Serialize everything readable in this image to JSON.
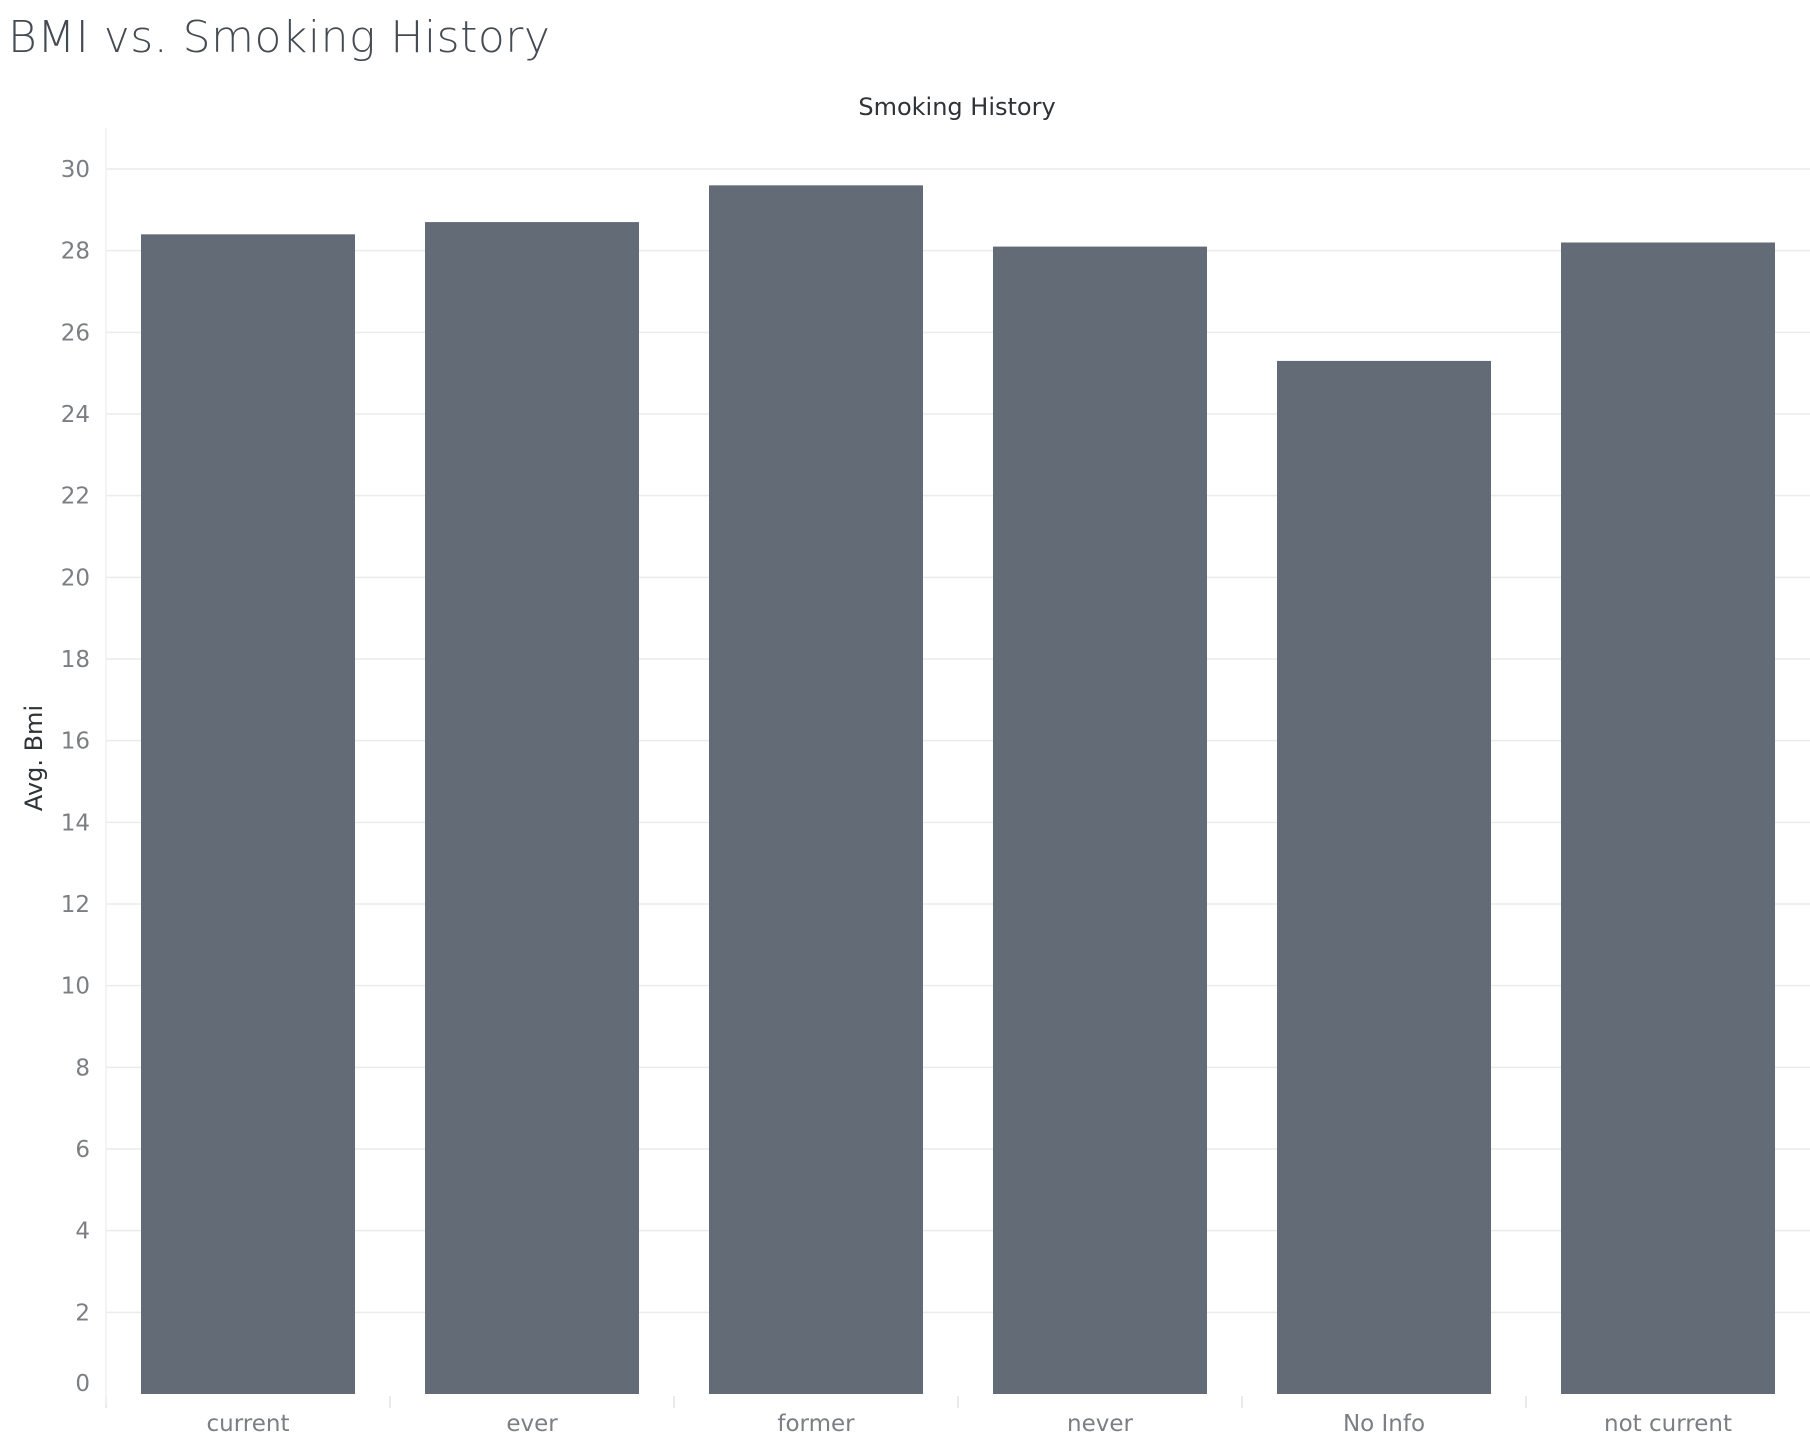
{
  "title": "BMI vs. Smoking History",
  "chart_data": {
    "type": "bar",
    "title": "BMI vs. Smoking History",
    "xlabel": "Smoking History",
    "ylabel": "Avg. Bmi",
    "categories": [
      "current",
      "ever",
      "former",
      "never",
      "No Info",
      "not current"
    ],
    "values": [
      28.4,
      28.7,
      29.6,
      28.1,
      25.3,
      28.2
    ],
    "ylim": [
      0,
      30
    ],
    "yticks": [
      0,
      2,
      4,
      6,
      8,
      10,
      12,
      14,
      16,
      18,
      20,
      22,
      24,
      26,
      28,
      30
    ],
    "grid": true,
    "bar_color": "#626b76"
  }
}
